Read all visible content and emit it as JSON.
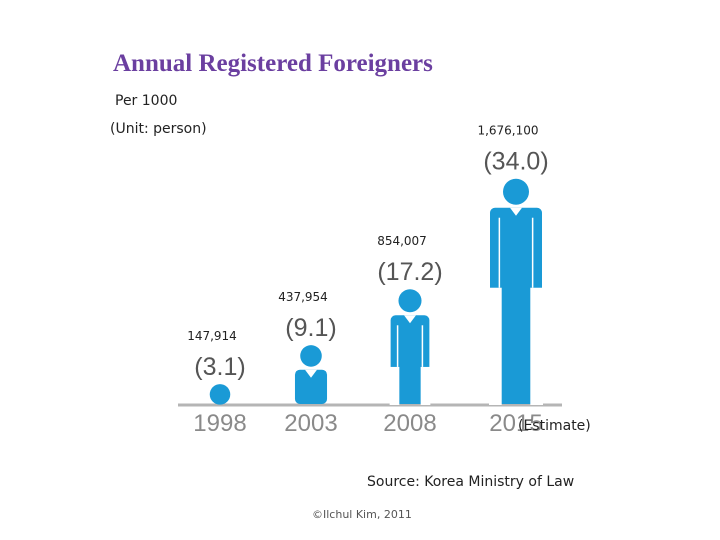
{
  "chart_data": {
    "type": "bar",
    "title": "Annual Registered Foreigners",
    "subtitle_lines": [
      "Per 1000",
      "(Unit: person)"
    ],
    "categories": [
      "1998",
      "2003",
      "2008",
      "2015"
    ],
    "values": [
      147914,
      437954,
      854007,
      1676100
    ],
    "value_labels": [
      "147,914",
      "437,954",
      "854,007",
      "1,676,100"
    ],
    "per_1000_labels": [
      "(3.1)",
      "(9.1)",
      "(17.2)",
      "(34.0)"
    ],
    "annotation": "(Estimate)",
    "bar_color": "#1a9ad6",
    "baseline_color": "#b5b5b5"
  },
  "source": "Source: Korea Ministry of Law",
  "credit": "©Ilchul Kim, 2011"
}
